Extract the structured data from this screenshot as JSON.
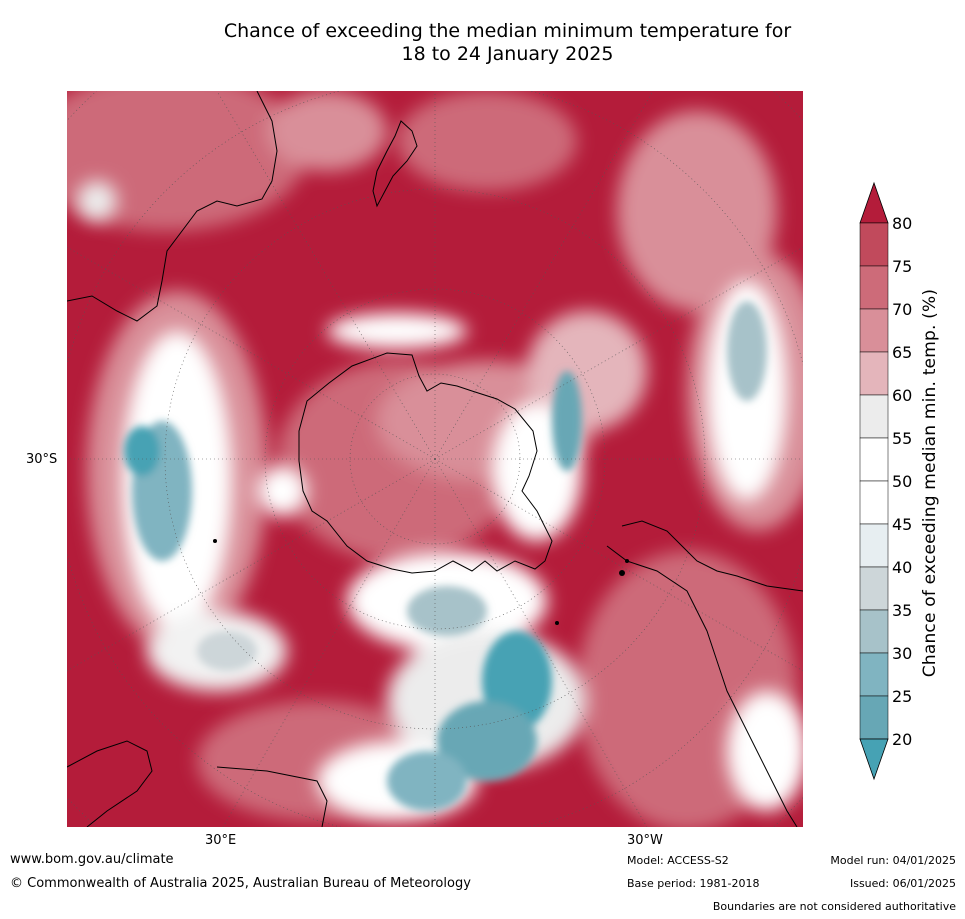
{
  "title": {
    "line1": "Chance of exceeding the median minimum temperature for",
    "line2": "18 to 24 January 2025"
  },
  "map": {
    "lat_label": "30°S",
    "lon_labels": [
      "30°E",
      "30°W"
    ],
    "projection": "south polar stereographic",
    "features": [
      "Antarctica",
      "Australia",
      "New Zealand",
      "South America",
      "Africa"
    ]
  },
  "colorbar": {
    "label": "Chance of exceeding median min. temp. (%)",
    "ticks": [
      "80",
      "75",
      "70",
      "65",
      "60",
      "55",
      "50",
      "45",
      "40",
      "35",
      "30",
      "25",
      "20"
    ],
    "colors": [
      "#b41c3a",
      "#c14a5c",
      "#cd6b79",
      "#d98f99",
      "#e4b5bb",
      "#ececec",
      "#ffffff",
      "#ffffff",
      "#e7eef1",
      "#cdd6d9",
      "#a7c2c9",
      "#80b4c1",
      "#67a7b5",
      "#46a2b4"
    ],
    "top_color": "#b41c3a",
    "bottom_color": "#46a2b4"
  },
  "footer": {
    "website": "www.bom.gov.au/climate",
    "copyright": "© Commonwealth of Australia 2025, Australian Bureau of Meteorology",
    "model": "Model: ACCESS-S2",
    "base_period": "Base period: 1981-2018",
    "model_run": "Model run: 04/01/2025",
    "issued": "Issued: 06/01/2025",
    "disclaimer": "Boundaries are not considered authoritative"
  }
}
